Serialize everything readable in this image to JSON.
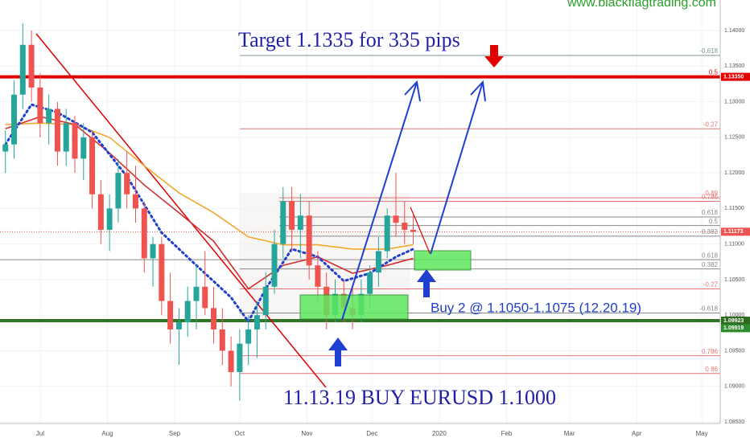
{
  "chart_data": {
    "type": "candlestick",
    "watermark": "www.blackflagtrading.com",
    "annotations": [
      "Target 1.1335 for 335 pips",
      "Buy 2 @ 1.1050-1.1075 (12.20.19)",
      "11.13.19 BUY EURUSD 1.1000"
    ],
    "up_color": "#26a69a",
    "down_color": "#ef5350",
    "xlim": [
      -18.5,
      313.5
    ],
    "ylim": [
      1.085,
      1.1443
    ],
    "xticks": [
      {
        "value": 0,
        "label": "Jul"
      },
      {
        "value": 31,
        "label": "Aug"
      },
      {
        "value": 62,
        "label": "Sep"
      },
      {
        "value": 92,
        "label": "Oct"
      },
      {
        "value": 123,
        "label": "Nov"
      },
      {
        "value": 153,
        "label": "Dec"
      },
      {
        "value": 184,
        "label": "2020"
      },
      {
        "value": 215,
        "label": "Feb"
      },
      {
        "value": 244,
        "label": "Mar"
      },
      {
        "value": 275,
        "label": "Apr"
      },
      {
        "value": 305,
        "label": "May"
      }
    ],
    "yticks": [
      {
        "value": 1.085,
        "label": "1.08500"
      },
      {
        "value": 1.09,
        "label": "1.09000"
      },
      {
        "value": 1.095,
        "label": "1.09500"
      },
      {
        "value": 1.1,
        "label": "1.10000"
      },
      {
        "value": 1.105,
        "label": "1.10500"
      },
      {
        "value": 1.11,
        "label": "1.11000"
      },
      {
        "value": 1.115,
        "label": "1.11500"
      },
      {
        "value": 1.12,
        "label": "1.12000"
      },
      {
        "value": 1.125,
        "label": "1.12500"
      },
      {
        "value": 1.13,
        "label": "1.13000"
      },
      {
        "value": 1.135,
        "label": "1.13500"
      },
      {
        "value": 1.14,
        "label": "1.14000"
      }
    ],
    "x": [
      -16,
      -12,
      -8,
      -4,
      0,
      4,
      8,
      12,
      16,
      20,
      24,
      28,
      32,
      36,
      40,
      44,
      48,
      52,
      56,
      60,
      64,
      68,
      72,
      76,
      80,
      84,
      88,
      92,
      96,
      100,
      104,
      108,
      112,
      116,
      120,
      124,
      128,
      132,
      136,
      140,
      144,
      148,
      152,
      156,
      160,
      164,
      168,
      172
    ],
    "open": [
      1.123,
      1.124,
      1.131,
      1.138,
      1.132,
      1.127,
      1.129,
      1.123,
      1.127,
      1.122,
      1.125,
      1.117,
      1.112,
      1.115,
      1.12,
      1.117,
      1.115,
      1.108,
      1.11,
      1.102,
      1.098,
      1.099,
      1.102,
      1.104,
      1.101,
      1.098,
      1.095,
      1.092,
      1.096,
      1.098,
      1.1,
      1.104,
      1.11,
      1.116,
      1.112,
      1.114,
      1.107,
      1.104,
      1.1,
      1.103,
      1.101,
      1.1,
      1.103,
      1.106,
      1.109,
      1.114,
      1.113,
      1.112
    ],
    "high": [
      1.126,
      1.133,
      1.141,
      1.14,
      1.134,
      1.131,
      1.13,
      1.129,
      1.128,
      1.127,
      1.126,
      1.119,
      1.117,
      1.122,
      1.123,
      1.121,
      1.116,
      1.111,
      1.111,
      1.106,
      1.101,
      1.104,
      1.107,
      1.109,
      1.104,
      1.101,
      1.097,
      1.098,
      1.1,
      1.102,
      1.106,
      1.112,
      1.118,
      1.118,
      1.117,
      1.116,
      1.109,
      1.106,
      1.105,
      1.105,
      1.104,
      1.105,
      1.107,
      1.111,
      1.115,
      1.12,
      1.116,
      1.114
    ],
    "low": [
      1.12,
      1.122,
      1.129,
      1.13,
      1.125,
      1.124,
      1.121,
      1.121,
      1.12,
      1.119,
      1.115,
      1.11,
      1.109,
      1.113,
      1.115,
      1.113,
      1.106,
      1.104,
      1.1,
      1.096,
      1.093,
      1.097,
      1.098,
      1.1,
      1.096,
      1.093,
      1.09,
      1.088,
      1.093,
      1.094,
      1.098,
      1.103,
      1.108,
      1.109,
      1.108,
      1.105,
      1.102,
      1.098,
      1.099,
      1.099,
      1.098,
      1.099,
      1.101,
      1.104,
      1.108,
      1.111,
      1.11,
      1.11
    ],
    "close": [
      1.124,
      1.131,
      1.138,
      1.132,
      1.127,
      1.129,
      1.123,
      1.127,
      1.122,
      1.125,
      1.117,
      1.112,
      1.115,
      1.12,
      1.117,
      1.115,
      1.108,
      1.11,
      1.102,
      1.098,
      1.099,
      1.102,
      1.104,
      1.101,
      1.098,
      1.095,
      1.092,
      1.096,
      1.098,
      1.1,
      1.104,
      1.11,
      1.116,
      1.112,
      1.114,
      1.107,
      1.104,
      1.1,
      1.103,
      1.101,
      1.1,
      1.103,
      1.106,
      1.109,
      1.114,
      1.113,
      1.112,
      1.1117
    ],
    "overlays": [
      {
        "color": "#f0a830",
        "style": "solid",
        "x": [
          -16,
          0,
          16,
          32,
          48,
          64,
          80,
          96,
          112,
          128,
          144,
          160,
          172
        ],
        "values": [
          1.1268,
          1.127,
          1.1268,
          1.125,
          1.121,
          1.1172,
          1.1144,
          1.111,
          1.1099,
          1.1099,
          1.1093,
          1.1093,
          1.1099
        ]
      },
      {
        "color": "#d32f2f",
        "style": "solid",
        "x": [
          -16,
          0,
          16,
          32,
          48,
          64,
          80,
          96,
          112,
          128,
          144,
          160,
          172
        ],
        "values": [
          1.1262,
          1.1279,
          1.1268,
          1.1228,
          1.1183,
          1.1144,
          1.1104,
          1.1037,
          1.107,
          1.1082,
          1.1059,
          1.107,
          1.108
        ]
      },
      {
        "color": "#1f3fd0",
        "style": "dotted",
        "x": [
          -16,
          -4,
          8,
          24,
          40,
          56,
          72,
          88,
          96,
          104,
          116,
          128,
          140,
          152,
          164,
          172
        ],
        "values": [
          1.124,
          1.1296,
          1.1285,
          1.1257,
          1.1195,
          1.1116,
          1.107,
          1.1025,
          1.0991,
          1.1037,
          1.1093,
          1.1082,
          1.1048,
          1.1059,
          1.1082,
          1.1093
        ]
      }
    ],
    "levels": [
      {
        "value": 1.1365,
        "color": "#7a9a8a",
        "style": "thin",
        "label": "-0.618"
      },
      {
        "value": 1.1335,
        "color": "#e00000",
        "style": "thick",
        "label": "0.5",
        "tag": "1.13350"
      },
      {
        "value": 1.1262,
        "color": "#e57373",
        "style": "thin",
        "label": "-0.27"
      },
      {
        "value": 1.1165,
        "color": "#e57373",
        "style": "thin",
        "label": "0.89"
      },
      {
        "value": 1.116,
        "color": "#e57373",
        "style": "thin",
        "label": "0.786"
      },
      {
        "value": 1.1138,
        "color": "#888888",
        "style": "thin",
        "label": "0.618"
      },
      {
        "value": 1.1126,
        "color": "#888888",
        "style": "thin",
        "label": "0.5"
      },
      {
        "value": 1.1111,
        "color": "#888888",
        "style": "thin",
        "label": "0.382"
      },
      {
        "value": 1.11173,
        "color": "#ef5350",
        "style": "dash",
        "tag": "1.11173"
      },
      {
        "value": 1.1078,
        "color": "#888888",
        "style": "thin",
        "label": "0.618"
      },
      {
        "value": 1.1065,
        "color": "#888888",
        "style": "thin",
        "label": "0.382"
      },
      {
        "value": 1.1037,
        "color": "#e57373",
        "style": "thin",
        "label": "-0.27"
      },
      {
        "value": 1.1003,
        "color": "#888888",
        "style": "thin",
        "label": "-0.618"
      },
      {
        "value": 1.09923,
        "color": "#2e6b1f",
        "style": "thick",
        "tag": "1.09923"
      },
      {
        "value": 1.09919,
        "color": "#2e8b2e",
        "style": "thin",
        "tag": "1.09919"
      },
      {
        "value": 1.0943,
        "color": "#e57373",
        "style": "thin",
        "label": "0.786"
      },
      {
        "value": 1.0918,
        "color": "#e57373",
        "style": "thin",
        "label": "0.86"
      }
    ]
  }
}
